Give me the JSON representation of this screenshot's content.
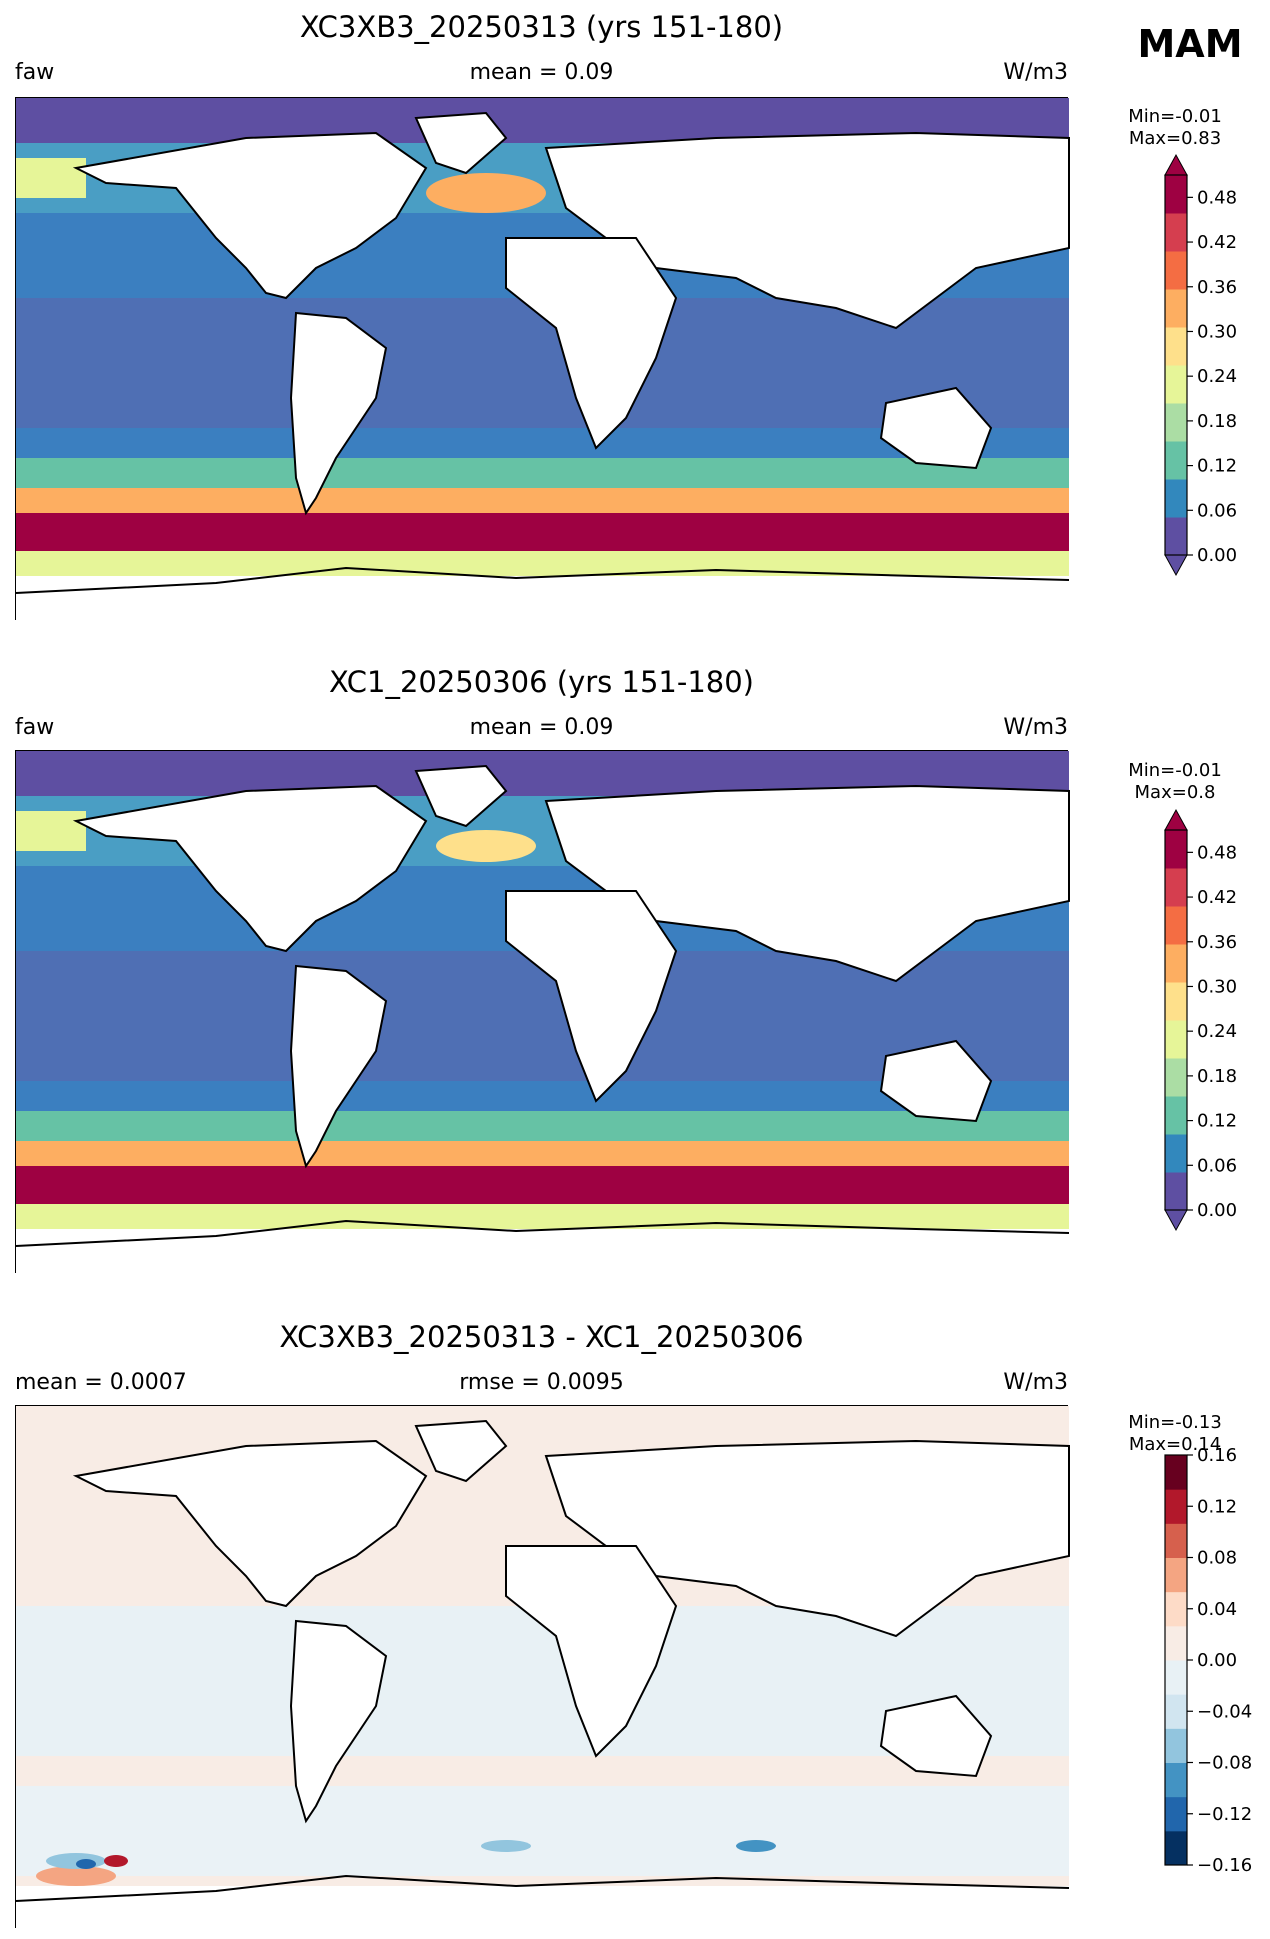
{
  "season": "MAM",
  "panels": [
    {
      "title": "XC3XB3_20250313 (yrs 151-180)",
      "left_label": "faw",
      "center_label": "mean = 0.09",
      "units": "W/m3",
      "min_text": "Min=-0.01",
      "max_text": "Max=0.83",
      "colormap": "spectral",
      "colorbar": {
        "ticks": [
          "0.00",
          "0.06",
          "0.12",
          "0.18",
          "0.24",
          "0.30",
          "0.36",
          "0.42",
          "0.48"
        ],
        "range": [
          0.0,
          0.51
        ],
        "extend": "both"
      }
    },
    {
      "title": "XC1_20250306 (yrs 151-180)",
      "left_label": "faw",
      "center_label": "mean = 0.09",
      "units": "W/m3",
      "min_text": "Min=-0.01",
      "max_text": "Max=0.8",
      "colormap": "spectral",
      "colorbar": {
        "ticks": [
          "0.00",
          "0.06",
          "0.12",
          "0.18",
          "0.24",
          "0.30",
          "0.36",
          "0.42",
          "0.48"
        ],
        "range": [
          0.0,
          0.51
        ],
        "extend": "both"
      }
    },
    {
      "title": "XC3XB3_20250313 - XC1_20250306",
      "left_label": "mean = 0.0007",
      "center_label": "rmse = 0.0095",
      "units": "W/m3",
      "min_text": "Min=-0.13",
      "max_text": "Max=0.14",
      "colormap": "diverging-rdbu",
      "colorbar": {
        "ticks": [
          "0.16",
          "0.12",
          "0.08",
          "0.04",
          "0.00",
          "−0.04",
          "−0.08",
          "−0.12",
          "−0.16"
        ],
        "range": [
          -0.16,
          0.16
        ],
        "extend": "neither"
      }
    }
  ],
  "colors": {
    "spectral": [
      "#5e4fa2",
      "#3288bd",
      "#66c2a5",
      "#abdda4",
      "#e6f598",
      "#fee08b",
      "#fdae61",
      "#f46d43",
      "#d53e4f",
      "#9e0142"
    ],
    "diverging": [
      "#053061",
      "#2166ac",
      "#4393c3",
      "#92c5de",
      "#d1e5f0",
      "#e8f1f5",
      "#f8ece5",
      "#fddbc7",
      "#f4a582",
      "#d6604d",
      "#b2182b",
      "#67001f"
    ]
  }
}
